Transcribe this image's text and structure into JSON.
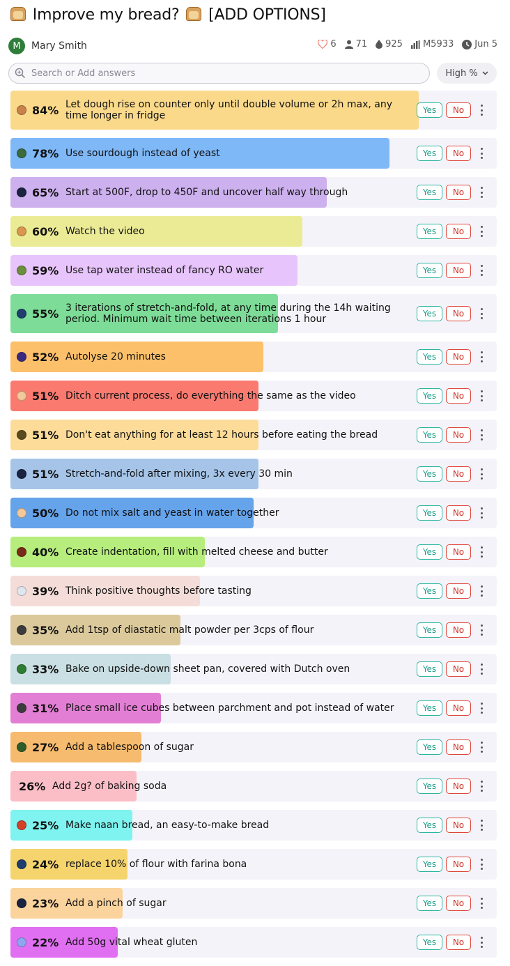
{
  "header": {
    "title": "Improve my bread?  [ADD OPTIONS]",
    "title_main": "Improve my bread?",
    "title_tag": "[ADD OPTIONS]",
    "author": {
      "initial": "M",
      "name": "Mary Smith"
    },
    "stats": {
      "likes": "6",
      "traders": "71",
      "liquidity": "925",
      "volume": "M5933",
      "date": "Jun 5"
    }
  },
  "search": {
    "placeholder": "Search or Add answers",
    "value": ""
  },
  "sort": {
    "label": "High %"
  },
  "answers": [
    {
      "pct": "84%",
      "text": "Let dough rise on counter only until double volume or 2h max, any time longer in fridge",
      "color": "#fad98a",
      "icon": "#c9824a",
      "value": 84,
      "tall": true
    },
    {
      "pct": "78%",
      "text": "Use sourdough instead of yeast",
      "color": "#7fb8f7",
      "icon": "#3b6a3e",
      "value": 78
    },
    {
      "pct": "65%",
      "text": "Start at 500F, drop to 450F and uncover half way through",
      "color": "#cdb0ee",
      "icon": "#1a2340",
      "value": 65
    },
    {
      "pct": "60%",
      "text": "Watch the video",
      "color": "#ebeb96",
      "icon": "#d9964f",
      "value": 60
    },
    {
      "pct": "59%",
      "text": "Use tap water instead of fancy RO water",
      "color": "#e7c4fb",
      "icon": "#6b8f3c",
      "value": 59
    },
    {
      "pct": "55%",
      "text": "3 iterations of stretch-and-fold, at any time during the 14h waiting period. Minimum wait time between iterations 1 hour",
      "color": "#7ddc97",
      "icon": "#1f3d6e",
      "value": 55,
      "tall": true
    },
    {
      "pct": "52%",
      "text": "Autolyse 20 minutes",
      "color": "#fdc06a",
      "icon": "#3a2a80",
      "value": 52
    },
    {
      "pct": "51%",
      "text": "Ditch current process, do everything the same as the video",
      "color": "#fa7a70",
      "icon": "#f2c99a",
      "value": 51
    },
    {
      "pct": "51%",
      "text": "Don't eat anything for at least 12 hours before eating the bread",
      "color": "#fddc9a",
      "icon": "#5a4a1e",
      "value": 51
    },
    {
      "pct": "51%",
      "text": "Stretch-and-fold after mixing, 3x every 30 min",
      "color": "#a5c4e8",
      "icon": "#1a2340",
      "value": 51
    },
    {
      "pct": "50%",
      "text": "Do not mix salt and yeast in water together",
      "color": "#65a3eb",
      "icon": "#f2c99a",
      "value": 50
    },
    {
      "pct": "40%",
      "text": "Create indentation, fill with melted cheese and butter",
      "color": "#b6ed7c",
      "icon": "#7a2a18",
      "value": 40
    },
    {
      "pct": "39%",
      "text": "Think positive thoughts before tasting",
      "color": "#f4ddd8",
      "icon": "#dfe6f0",
      "value": 39
    },
    {
      "pct": "35%",
      "text": "Add 1tsp of diastatic malt powder per 3cps of flour",
      "color": "#dbc99c",
      "icon": "#3c3c3c",
      "value": 35
    },
    {
      "pct": "33%",
      "text": "Bake on upside-down sheet pan, covered with Dutch oven",
      "color": "#c9dfe3",
      "icon": "#2e7d32",
      "value": 33
    },
    {
      "pct": "31%",
      "text": "Place small ice cubes between parchment and pot instead of water",
      "color": "#e27fd4",
      "icon": "#3c3c3c",
      "value": 31
    },
    {
      "pct": "27%",
      "text": "Add a tablespoon of sugar",
      "color": "#f6bb6e",
      "icon": "#2e5d2a",
      "value": 27
    },
    {
      "pct": "26%",
      "text": "Add 2g? of baking soda",
      "color": "#fbbec7",
      "icon": "",
      "value": 26
    },
    {
      "pct": "25%",
      "text": "Make naan bread, an easy-to-make bread",
      "color": "#7ef3f0",
      "icon": "#d3412a",
      "value": 25
    },
    {
      "pct": "24%",
      "text": "replace 10% of flour with farina bona",
      "color": "#f5d46e",
      "icon": "#1f3d6e",
      "value": 24
    },
    {
      "pct": "23%",
      "text": "Add a pinch of sugar",
      "color": "#fbd39c",
      "icon": "#1a2340",
      "value": 23
    },
    {
      "pct": "22%",
      "text": "Add 50g vital wheat gluten",
      "color": "#e16ff2",
      "icon": "#8ea6f0",
      "value": 22
    }
  ],
  "buttons": {
    "yes": "Yes",
    "no": "No"
  },
  "colors": {
    "yes": "#1e9d89",
    "no": "#d6342a",
    "avatar": "#2f7d3a"
  },
  "icons": [
    "bread-icon",
    "heart-icon",
    "user-icon",
    "droplet-icon",
    "bar-chart-icon",
    "clock-icon",
    "search-icon",
    "chevron-down-icon",
    "more-vertical-icon"
  ]
}
